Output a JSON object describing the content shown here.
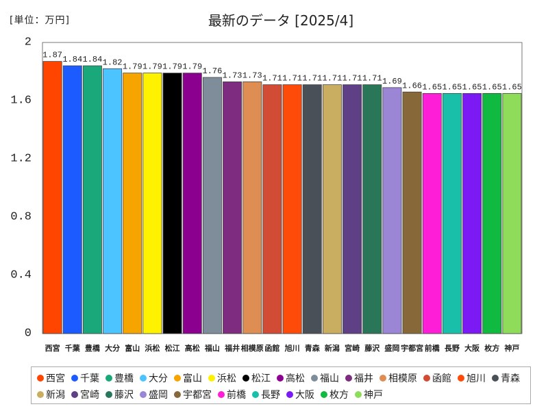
{
  "chart_data": {
    "type": "bar",
    "title": "最新のデータ [2025/4]",
    "unit_label": "[単位：万円]",
    "xlabel": "",
    "ylabel": "",
    "categories": [
      "西宮",
      "千葉",
      "豊橋",
      "大分",
      "富山",
      "浜松",
      "松江",
      "高松",
      "福山",
      "福井",
      "相模原",
      "函館",
      "旭川",
      "青森",
      "新潟",
      "宮崎",
      "藤沢",
      "盛岡",
      "宇都宮",
      "前橋",
      "長野",
      "大阪",
      "枚方",
      "神戸"
    ],
    "values": [
      1.87,
      1.84,
      1.84,
      1.82,
      1.79,
      1.79,
      1.79,
      1.79,
      1.76,
      1.73,
      1.73,
      1.71,
      1.71,
      1.71,
      1.71,
      1.71,
      1.71,
      1.69,
      1.66,
      1.65,
      1.65,
      1.65,
      1.65,
      1.65
    ],
    "colors": [
      "#FF4500",
      "#1C5BFF",
      "#1AA77A",
      "#4CC4FF",
      "#F5A400",
      "#FFF200",
      "#000000",
      "#8C0090",
      "#7F8C99",
      "#7D2C7F",
      "#DE8E52",
      "#D14B35",
      "#FF4B0A",
      "#4A5058",
      "#C9AE62",
      "#5F3F85",
      "#2A7659",
      "#9B86D6",
      "#876838",
      "#FF1ED7",
      "#19BFA8",
      "#7B1AF2",
      "#10B93F",
      "#8FDB5A"
    ],
    "ylim": [
      0,
      2
    ],
    "yticks": [
      0,
      0.4,
      0.8,
      1.2,
      1.6,
      2
    ],
    "grid": false,
    "legend_placement": "bottom"
  }
}
